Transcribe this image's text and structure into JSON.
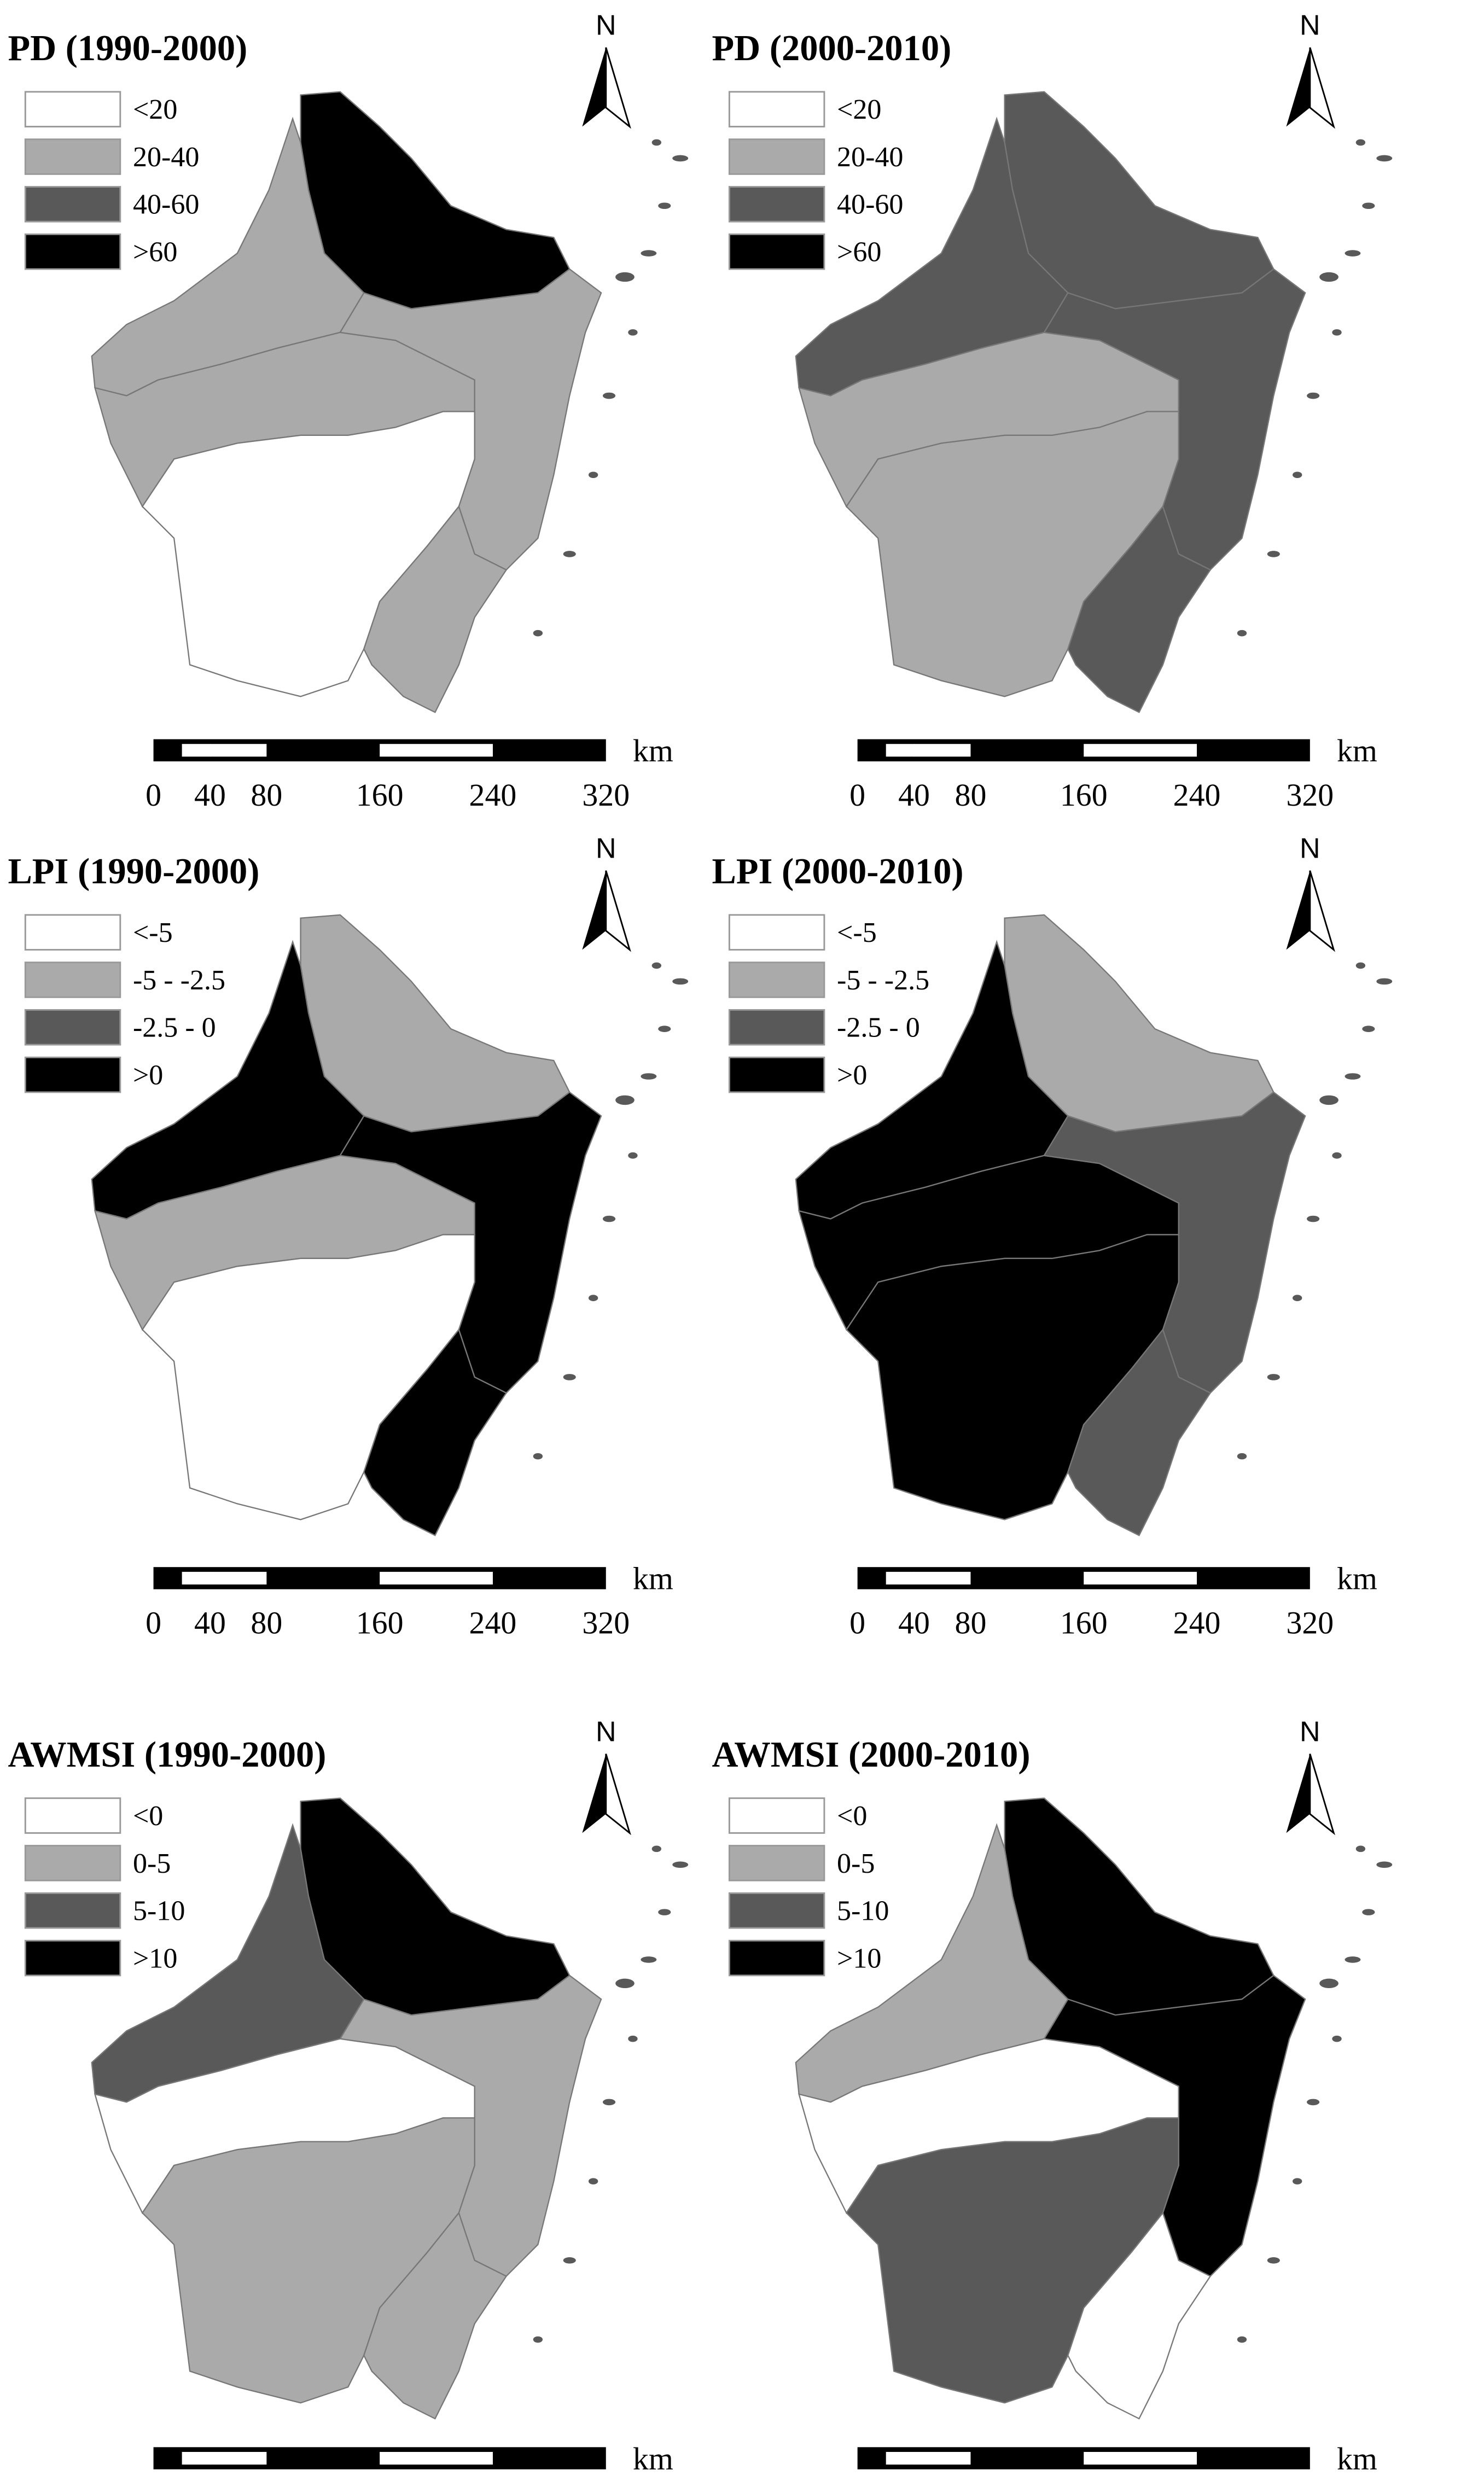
{
  "north": "N",
  "scale_bar": {
    "labels": [
      0,
      40,
      80,
      160,
      240,
      320
    ],
    "unit": "km"
  },
  "panels": [
    {
      "title": "PD (1990-2000)",
      "legend": [
        {
          "label": "<20",
          "color": "#ffffff"
        },
        {
          "label": "20-40",
          "color": "#aaaaaa"
        },
        {
          "label": "40-60",
          "color": "#595959"
        },
        {
          "label": ">60",
          "color": "#000000"
        }
      ],
      "region_classes": [
        3,
        1,
        1,
        1,
        0,
        1
      ]
    },
    {
      "title": "PD (2000-2010)",
      "legend": [
        {
          "label": "<20",
          "color": "#ffffff"
        },
        {
          "label": "20-40",
          "color": "#aaaaaa"
        },
        {
          "label": "40-60",
          "color": "#595959"
        },
        {
          "label": ">60",
          "color": "#000000"
        }
      ],
      "region_classes": [
        2,
        2,
        1,
        2,
        1,
        2
      ]
    },
    {
      "title": "LPI (1990-2000)",
      "legend": [
        {
          "label": "<-5",
          "color": "#ffffff"
        },
        {
          "label": "-5 - -2.5",
          "color": "#aaaaaa"
        },
        {
          "label": "-2.5 - 0",
          "color": "#595959"
        },
        {
          "label": ">0",
          "color": "#000000"
        }
      ],
      "region_classes": [
        1,
        3,
        1,
        3,
        0,
        3
      ]
    },
    {
      "title": "LPI (2000-2010)",
      "legend": [
        {
          "label": "<-5",
          "color": "#ffffff"
        },
        {
          "label": "-5 - -2.5",
          "color": "#aaaaaa"
        },
        {
          "label": "-2.5 - 0",
          "color": "#595959"
        },
        {
          "label": ">0",
          "color": "#000000"
        }
      ],
      "region_classes": [
        1,
        3,
        3,
        2,
        3,
        2
      ]
    },
    {
      "title": "AWMSI (1990-2000)",
      "legend": [
        {
          "label": "<0",
          "color": "#ffffff"
        },
        {
          "label": "0-5",
          "color": "#aaaaaa"
        },
        {
          "label": "5-10",
          "color": "#595959"
        },
        {
          "label": ">10",
          "color": "#000000"
        }
      ],
      "region_classes": [
        3,
        2,
        0,
        1,
        1,
        1
      ]
    },
    {
      "title": "AWMSI (2000-2010)",
      "legend": [
        {
          "label": "<0",
          "color": "#ffffff"
        },
        {
          "label": "0-5",
          "color": "#aaaaaa"
        },
        {
          "label": "5-10",
          "color": "#595959"
        },
        {
          "label": ">10",
          "color": "#000000"
        }
      ],
      "region_classes": [
        3,
        1,
        0,
        3,
        2,
        0
      ]
    }
  ]
}
